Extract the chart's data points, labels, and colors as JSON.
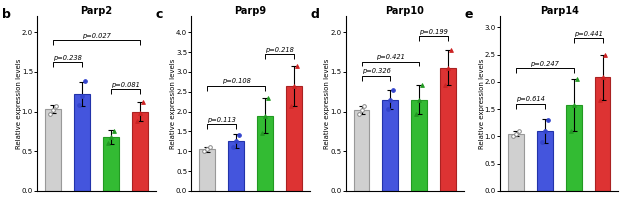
{
  "panels": [
    {
      "label": "b",
      "title": "Parp2",
      "ylim": [
        0,
        2.2
      ],
      "yticks": [
        0.0,
        0.5,
        1.0,
        1.5,
        2.0
      ],
      "bar_values": [
        1.03,
        1.22,
        0.68,
        1.0
      ],
      "bar_errors": [
        0.05,
        0.15,
        0.09,
        0.12
      ],
      "significance": [
        {
          "from": 0,
          "to": 1,
          "y": 1.62,
          "text": "p=0.238"
        },
        {
          "from": 0,
          "to": 3,
          "y": 1.9,
          "text": "p=0.027"
        },
        {
          "from": 2,
          "to": 3,
          "y": 1.28,
          "text": "p=0.081"
        }
      ],
      "dot_values": [
        [
          0.97,
          1.02,
          1.07
        ],
        [
          1.08,
          1.2,
          1.38
        ],
        [
          0.6,
          0.68,
          0.76
        ],
        [
          0.88,
          0.98,
          1.12
        ]
      ]
    },
    {
      "label": "c",
      "title": "Parp9",
      "ylim": [
        0,
        4.4
      ],
      "yticks": [
        0.0,
        0.5,
        1.0,
        1.5,
        2.0,
        2.5,
        3.0,
        3.5,
        4.0
      ],
      "bar_values": [
        1.05,
        1.25,
        1.9,
        2.65
      ],
      "bar_errors": [
        0.06,
        0.18,
        0.45,
        0.5
      ],
      "significance": [
        {
          "from": 0,
          "to": 1,
          "y": 1.68,
          "text": "p=0.113"
        },
        {
          "from": 0,
          "to": 2,
          "y": 2.65,
          "text": "p=0.108"
        },
        {
          "from": 2,
          "to": 3,
          "y": 3.45,
          "text": "p=0.218"
        }
      ],
      "dot_values": [
        [
          1.0,
          1.05,
          1.1
        ],
        [
          1.1,
          1.25,
          1.4
        ],
        [
          1.45,
          1.9,
          2.35
        ],
        [
          2.15,
          2.65,
          3.15
        ]
      ]
    },
    {
      "label": "d",
      "title": "Parp10",
      "ylim": [
        0,
        2.2
      ],
      "yticks": [
        0.0,
        0.5,
        1.0,
        1.5,
        2.0
      ],
      "bar_values": [
        1.02,
        1.15,
        1.15,
        1.55
      ],
      "bar_errors": [
        0.05,
        0.12,
        0.18,
        0.22
      ],
      "significance": [
        {
          "from": 0,
          "to": 1,
          "y": 1.45,
          "text": "p=0.326"
        },
        {
          "from": 0,
          "to": 2,
          "y": 1.63,
          "text": "p=0.421"
        },
        {
          "from": 2,
          "to": 3,
          "y": 1.95,
          "text": "p=0.199"
        }
      ],
      "dot_values": [
        [
          0.97,
          1.02,
          1.07
        ],
        [
          1.03,
          1.15,
          1.27
        ],
        [
          0.97,
          1.15,
          1.33
        ],
        [
          1.33,
          1.55,
          1.77
        ]
      ]
    },
    {
      "label": "e",
      "title": "Parp14",
      "ylim": [
        0,
        3.2
      ],
      "yticks": [
        0.0,
        0.5,
        1.0,
        1.5,
        2.0,
        2.5,
        3.0
      ],
      "bar_values": [
        1.05,
        1.1,
        1.58,
        2.08
      ],
      "bar_errors": [
        0.05,
        0.22,
        0.48,
        0.42
      ],
      "significance": [
        {
          "from": 0,
          "to": 1,
          "y": 1.6,
          "text": "p=0.614"
        },
        {
          "from": 0,
          "to": 2,
          "y": 2.25,
          "text": "p=0.247"
        },
        {
          "from": 2,
          "to": 3,
          "y": 2.8,
          "text": "p=0.441"
        }
      ],
      "dot_values": [
        [
          1.0,
          1.05,
          1.1
        ],
        [
          0.9,
          1.1,
          1.3
        ],
        [
          1.1,
          1.58,
          2.06
        ],
        [
          1.66,
          2.08,
          2.5
        ]
      ]
    }
  ],
  "bar_colors": [
    "#d0d0d0",
    "#4455dd",
    "#33bb33",
    "#dd3333"
  ],
  "bar_edge_colors": [
    "#999999",
    "#2233aa",
    "#229922",
    "#aa2222"
  ],
  "dot_colors": [
    "#888888",
    "#3344cc",
    "#229922",
    "#cc2222"
  ],
  "dot_markers": [
    "o",
    "o",
    "^",
    "^"
  ],
  "ylabel": "Relative expression levels",
  "background_color": "#ffffff"
}
